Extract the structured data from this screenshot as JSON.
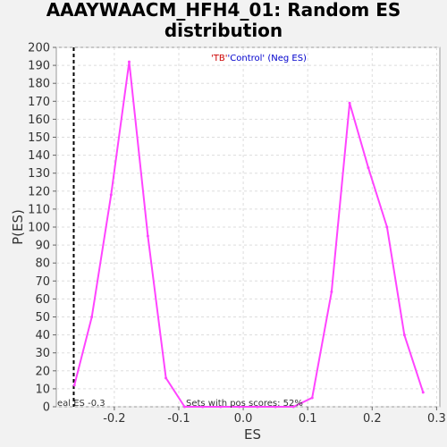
{
  "chart_data": {
    "type": "line",
    "title_line1": "AAAYWAACM_HFH4_01: Random ES",
    "title_line2": "distribution",
    "xlabel": "ES",
    "ylabel": "P(ES)",
    "xlim": [
      -0.29,
      0.305
    ],
    "ylim": [
      0,
      200
    ],
    "x_ticks": [
      "-0.2",
      "-0.1",
      "0.0",
      "0.1",
      "0.2",
      "0.3"
    ],
    "x_tick_values": [
      -0.2,
      -0.1,
      0.0,
      0.1,
      0.2,
      0.3
    ],
    "y_ticks": [
      0,
      10,
      20,
      30,
      40,
      50,
      60,
      70,
      80,
      90,
      100,
      110,
      120,
      130,
      140,
      150,
      160,
      170,
      180,
      190,
      200
    ],
    "grid": true,
    "legend": {
      "part1": "'TB'",
      "part2": "'Control'",
      "part3": " (Neg ES)",
      "color1": "#cc0000",
      "color2": "#0000cc",
      "position": "top-center"
    },
    "real_es": {
      "value": -0.263,
      "label": "eal ES -0.3"
    },
    "annotation": "Sets with pos scores: 52%",
    "series": [
      {
        "color": "#ff44ff",
        "x": [
          -0.262,
          -0.235,
          -0.205,
          -0.177,
          -0.148,
          -0.12,
          -0.091,
          -0.063,
          -0.035,
          -0.006,
          0.022,
          0.05,
          0.078,
          0.107,
          0.137,
          0.165,
          0.194,
          0.223,
          0.25,
          0.279
        ],
        "y": [
          12,
          50,
          118,
          192,
          95,
          16,
          0,
          0,
          0,
          0,
          0,
          0,
          0,
          5,
          64,
          169,
          133,
          100,
          40,
          8
        ]
      }
    ]
  }
}
